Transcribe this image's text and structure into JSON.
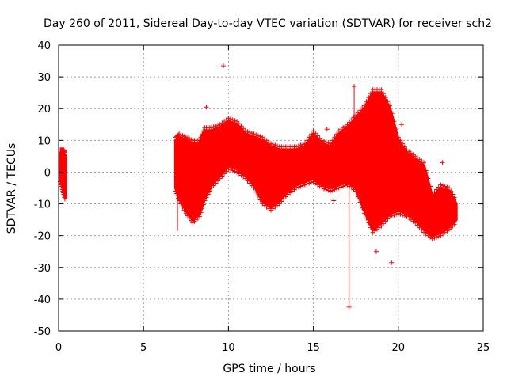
{
  "chart_data": {
    "type": "scatter",
    "title": "Day 260 of 2011, Sidereal Day-to-day VTEC variation (SDTVAR) for receiver sch2",
    "xlabel": "GPS time / hours",
    "ylabel": "SDTVAR / TECUs",
    "xlim": [
      0,
      25
    ],
    "ylim": [
      -50,
      40
    ],
    "xticks": [
      "0",
      "5",
      "10",
      "15",
      "20",
      "25"
    ],
    "yticks": [
      "-50",
      "-40",
      "-30",
      "-20",
      "-10",
      "0",
      "10",
      "20",
      "30",
      "40"
    ],
    "grid": true,
    "marker": "+",
    "series_color": "#ff0000",
    "envelope": [
      {
        "x": 0.1,
        "lo": -2,
        "hi": 6
      },
      {
        "x": 0.2,
        "lo": -4,
        "hi": 6
      },
      {
        "x": 0.3,
        "lo": -6,
        "hi": 6
      },
      {
        "x": 0.4,
        "lo": -8,
        "hi": 5
      },
      {
        "x": 6.9,
        "lo": -5,
        "hi": 10
      },
      {
        "x": 7.1,
        "lo": -8,
        "hi": 11
      },
      {
        "x": 7.5,
        "lo": -12,
        "hi": 10
      },
      {
        "x": 7.9,
        "lo": -15,
        "hi": 9
      },
      {
        "x": 8.3,
        "lo": -13,
        "hi": 9
      },
      {
        "x": 8.6,
        "lo": -8,
        "hi": 13
      },
      {
        "x": 9.0,
        "lo": -4,
        "hi": 13
      },
      {
        "x": 9.5,
        "lo": -1,
        "hi": 14
      },
      {
        "x": 10.0,
        "lo": 2,
        "hi": 16
      },
      {
        "x": 10.5,
        "lo": 1,
        "hi": 15
      },
      {
        "x": 11.0,
        "lo": -1,
        "hi": 12
      },
      {
        "x": 11.5,
        "lo": -4,
        "hi": 11
      },
      {
        "x": 12.0,
        "lo": -9,
        "hi": 10
      },
      {
        "x": 12.5,
        "lo": -11,
        "hi": 8
      },
      {
        "x": 13.0,
        "lo": -9,
        "hi": 7
      },
      {
        "x": 13.5,
        "lo": -6,
        "hi": 7
      },
      {
        "x": 14.0,
        "lo": -4,
        "hi": 7
      },
      {
        "x": 14.5,
        "lo": -3,
        "hi": 8
      },
      {
        "x": 15.0,
        "lo": -2,
        "hi": 12
      },
      {
        "x": 15.5,
        "lo": -4,
        "hi": 9
      },
      {
        "x": 16.0,
        "lo": -5,
        "hi": 8
      },
      {
        "x": 16.5,
        "lo": -4,
        "hi": 12
      },
      {
        "x": 17.0,
        "lo": -3,
        "hi": 14
      },
      {
        "x": 17.5,
        "lo": -5,
        "hi": 17
      },
      {
        "x": 18.0,
        "lo": -12,
        "hi": 20
      },
      {
        "x": 18.5,
        "lo": -18,
        "hi": 25
      },
      {
        "x": 19.0,
        "lo": -16,
        "hi": 25
      },
      {
        "x": 19.5,
        "lo": -13,
        "hi": 20
      },
      {
        "x": 20.0,
        "lo": -12,
        "hi": 10
      },
      {
        "x": 20.5,
        "lo": -13,
        "hi": 6
      },
      {
        "x": 21.0,
        "lo": -15,
        "hi": 4
      },
      {
        "x": 21.5,
        "lo": -18,
        "hi": 2
      },
      {
        "x": 22.0,
        "lo": -20,
        "hi": -8
      },
      {
        "x": 22.5,
        "lo": -19,
        "hi": -5
      },
      {
        "x": 23.0,
        "lo": -17,
        "hi": -6
      },
      {
        "x": 23.4,
        "lo": -15,
        "hi": -10
      }
    ],
    "outliers": [
      {
        "x": 9.7,
        "y": 33.5
      },
      {
        "x": 17.1,
        "y": -42.5
      },
      {
        "x": 17.4,
        "y": 27
      },
      {
        "x": 18.7,
        "y": -25
      },
      {
        "x": 19.6,
        "y": -28.5
      },
      {
        "x": 20.2,
        "y": 15
      },
      {
        "x": 22.6,
        "y": 3
      },
      {
        "x": 15.8,
        "y": 13.5
      },
      {
        "x": 8.7,
        "y": 20.5
      },
      {
        "x": 16.2,
        "y": -9
      }
    ],
    "spikes": [
      {
        "x": 17.1,
        "y0": 0,
        "y1": -42.5
      },
      {
        "x": 17.4,
        "y0": -2,
        "y1": 27
      },
      {
        "x": 7.0,
        "y0": -5,
        "y1": -18.5
      }
    ]
  }
}
